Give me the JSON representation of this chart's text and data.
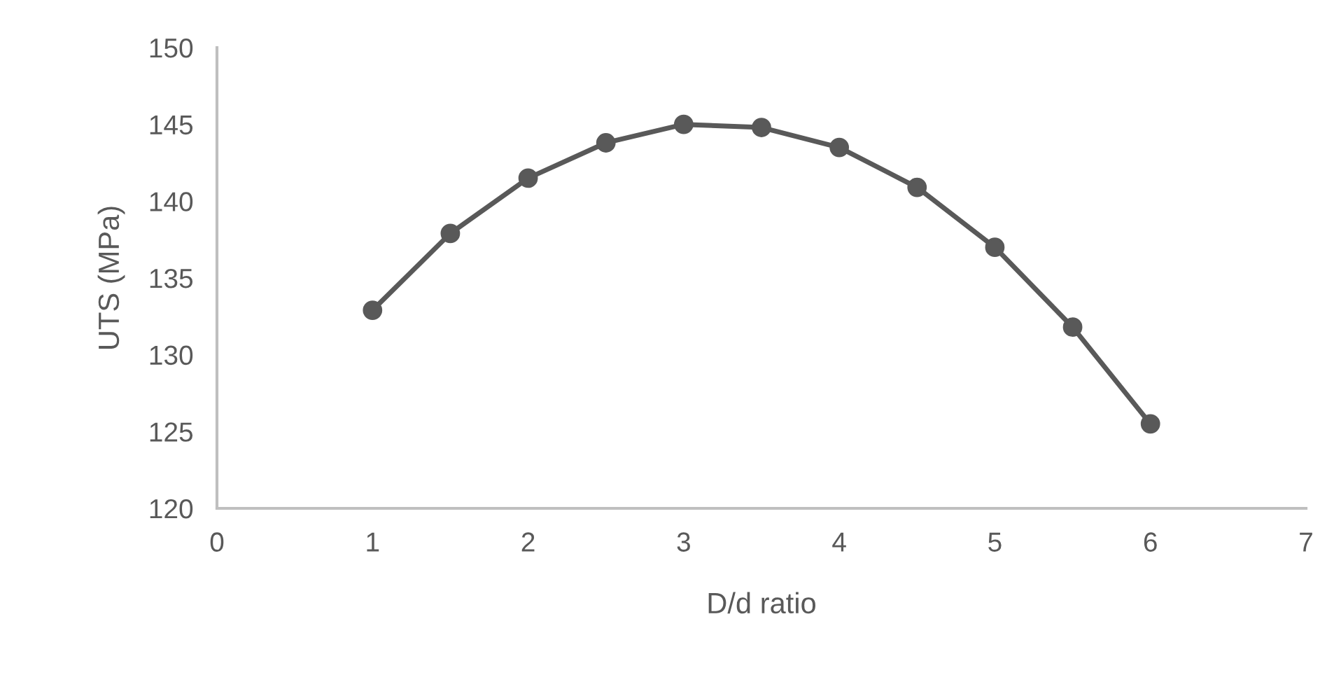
{
  "chart_data": {
    "type": "line",
    "xlabel": "D/d ratio",
    "ylabel": "UTS (MPa)",
    "x": [
      1,
      1.5,
      2,
      2.5,
      3,
      3.5,
      4,
      4.5,
      5,
      5.5,
      6
    ],
    "series": [
      {
        "color": "#595959",
        "values": [
          132.9,
          137.9,
          141.5,
          143.8,
          145.0,
          144.8,
          143.5,
          140.9,
          137.0,
          131.8,
          125.5
        ]
      }
    ],
    "xlim": [
      0,
      7
    ],
    "xticks": [
      0,
      1,
      2,
      3,
      4,
      5,
      6,
      7
    ],
    "ylim": [
      120,
      150
    ],
    "yticks": [
      120,
      125,
      130,
      135,
      140,
      145,
      150
    ],
    "grid": false,
    "legend": false,
    "marker": "circle",
    "line_style": "solid"
  }
}
